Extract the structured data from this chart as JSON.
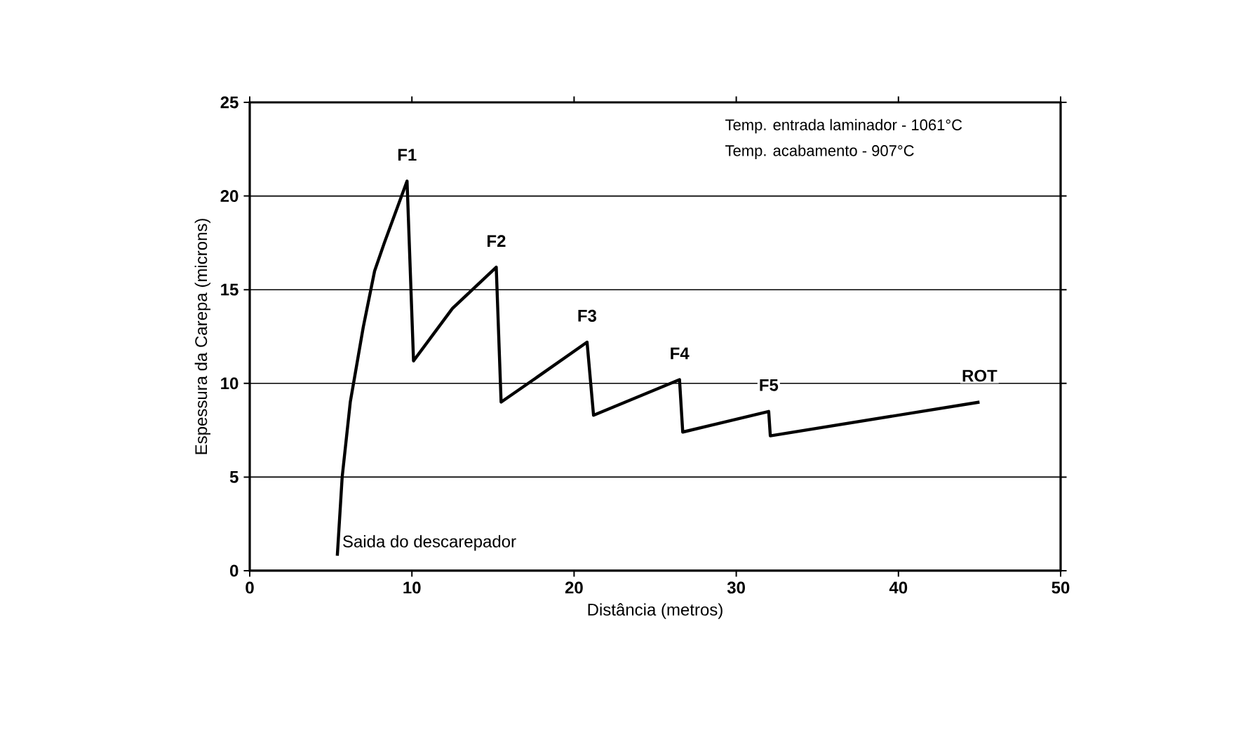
{
  "chart_data": {
    "type": "line",
    "xlabel": "Distância (metros)",
    "ylabel": "Espessura da Carepa (microns)",
    "x": [
      5.4,
      5.7,
      6.2,
      7,
      7.7,
      8.3,
      9.7,
      10.1,
      12.5,
      15.2,
      15.5,
      18,
      20.8,
      21.2,
      26.5,
      26.7,
      32,
      32.1,
      45
    ],
    "series": [
      {
        "color": "#000000",
        "values": [
          0.8,
          5,
          9,
          13,
          16,
          17.5,
          20.8,
          11.2,
          14,
          16.2,
          9,
          10.5,
          12.2,
          8.3,
          10.2,
          7.4,
          8.5,
          7.2,
          9
        ]
      }
    ],
    "xlim": [
      0,
      50
    ],
    "ylim": [
      0,
      25
    ],
    "xticks": [
      0,
      10,
      20,
      30,
      40,
      50
    ],
    "yticks": [
      0,
      5,
      10,
      15,
      20,
      25
    ],
    "grid": "y",
    "annotations": [
      {
        "text": "F1",
        "x": 9.7,
        "y": 20.8
      },
      {
        "text": "F2",
        "x": 15.2,
        "y": 16.2
      },
      {
        "text": "F3",
        "x": 20.8,
        "y": 12.2
      },
      {
        "text": "F4",
        "x": 26.5,
        "y": 10.2
      },
      {
        "text": "F5",
        "x": 32,
        "y": 8.5
      },
      {
        "text": "ROT",
        "x": 45,
        "y": 9
      },
      {
        "text": "Saida do descarepador",
        "x": 5.4,
        "y": 0.8
      },
      "Temp. entrada laminador - 1061°C",
      "Temp. acabamento - 907°C"
    ]
  }
}
